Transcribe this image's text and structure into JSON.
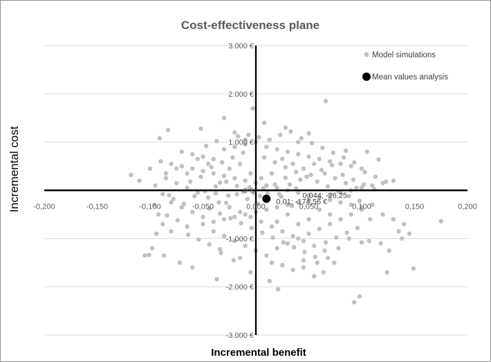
{
  "chart_data": {
    "type": "scatter",
    "title": "Cost-effectiveness plane",
    "xlabel": "Incremental benefit",
    "ylabel": "Incremental cost",
    "xlim": [
      -0.2,
      0.2
    ],
    "ylim": [
      -3000,
      3000
    ],
    "x_ticks": [
      "-0,200",
      "-0,150",
      "-0,100",
      "-0,050",
      "0,000",
      "0,050",
      "0,100",
      "0,150",
      "0,200"
    ],
    "y_ticks": [
      "3.000 €",
      "2.000 €",
      "1.000 €",
      "0 €",
      "-1.000 €",
      "-2.000 €",
      "-3.000 €"
    ],
    "grid": "horizontal",
    "legend_position": "top-right",
    "series": [
      {
        "name": "Model simulations",
        "color": "#c0c0c0",
        "points": [
          [
            -0.003,
            1700
          ],
          [
            0.066,
            1850
          ],
          [
            0.008,
            1400
          ],
          [
            -0.03,
            1500
          ],
          [
            -0.052,
            1280
          ],
          [
            0.028,
            1300
          ],
          [
            -0.083,
            1250
          ],
          [
            0.05,
            1180
          ],
          [
            -0.091,
            1080
          ],
          [
            -0.01,
            1050
          ],
          [
            0.04,
            1000
          ],
          [
            -0.02,
            1200
          ],
          [
            0.085,
            820
          ],
          [
            0.105,
            800
          ],
          [
            0.116,
            640
          ],
          [
            -0.118,
            320
          ],
          [
            0.175,
            -640
          ],
          [
            0.149,
            -1620
          ],
          [
            0.098,
            -2200
          ],
          [
            0.093,
            -2320
          ],
          [
            0.021,
            -2050
          ],
          [
            0.013,
            -1880
          ],
          [
            -0.037,
            -1840
          ],
          [
            0.055,
            -1780
          ],
          [
            0.064,
            -1700
          ],
          [
            0.124,
            -1700
          ],
          [
            0.126,
            -1250
          ],
          [
            -0.101,
            -1340
          ],
          [
            -0.087,
            -1350
          ],
          [
            -0.021,
            -1450
          ],
          [
            0.1,
            -1080
          ],
          [
            0.107,
            -1050
          ],
          [
            0.138,
            -1000
          ],
          [
            -0.072,
            -1500
          ],
          [
            -0.033,
            -1300
          ],
          [
            0.045,
            -1450
          ],
          [
            0.074,
            -1500
          ],
          [
            -0.105,
            -1350
          ],
          [
            -0.098,
            -1200
          ],
          [
            -0.06,
            -1600
          ],
          [
            -0.094,
            -900
          ],
          [
            -0.08,
            -850
          ],
          [
            -0.065,
            -750
          ],
          [
            -0.05,
            -700
          ],
          [
            -0.04,
            -650
          ],
          [
            -0.03,
            -600
          ],
          [
            -0.02,
            -550
          ],
          [
            -0.01,
            -500
          ],
          [
            0.0,
            -450
          ],
          [
            0.01,
            -400
          ],
          [
            0.02,
            -350
          ],
          [
            0.03,
            -300
          ],
          [
            0.04,
            -250
          ],
          [
            0.05,
            -200
          ],
          [
            0.06,
            -150
          ],
          [
            0.07,
            -100
          ],
          [
            0.08,
            -50
          ],
          [
            0.09,
            0
          ],
          [
            0.1,
            50
          ],
          [
            0.11,
            100
          ],
          [
            0.12,
            150
          ],
          [
            0.13,
            200
          ],
          [
            -0.09,
            600
          ],
          [
            -0.08,
            550
          ],
          [
            -0.07,
            500
          ],
          [
            -0.06,
            450
          ],
          [
            -0.05,
            400
          ],
          [
            -0.04,
            350
          ],
          [
            -0.03,
            300
          ],
          [
            -0.02,
            250
          ],
          [
            -0.01,
            200
          ],
          [
            0.0,
            150
          ],
          [
            0.01,
            100
          ],
          [
            0.02,
            50
          ],
          [
            0.03,
            0
          ],
          [
            0.04,
            -50
          ],
          [
            0.05,
            -100
          ],
          [
            0.06,
            -150
          ],
          [
            0.07,
            -200
          ],
          [
            0.08,
            -250
          ],
          [
            0.09,
            -300
          ],
          [
            0.1,
            -350
          ],
          [
            -0.085,
            250
          ],
          [
            -0.075,
            150
          ],
          [
            -0.065,
            50
          ],
          [
            -0.055,
            -50
          ],
          [
            -0.045,
            -150
          ],
          [
            -0.035,
            -250
          ],
          [
            -0.025,
            -350
          ],
          [
            -0.015,
            -450
          ],
          [
            -0.005,
            -550
          ],
          [
            0.005,
            -650
          ],
          [
            0.015,
            -750
          ],
          [
            0.025,
            -850
          ],
          [
            0.035,
            -950
          ],
          [
            0.045,
            -1050
          ],
          [
            0.055,
            -1150
          ],
          [
            0.065,
            -1250
          ],
          [
            -0.08,
            -250
          ],
          [
            -0.07,
            -350
          ],
          [
            -0.06,
            -450
          ],
          [
            -0.05,
            -550
          ],
          [
            -0.04,
            -850
          ],
          [
            -0.03,
            -950
          ],
          [
            -0.02,
            -1050
          ],
          [
            -0.01,
            -1150
          ],
          [
            0.0,
            -1250
          ],
          [
            0.01,
            -1350
          ],
          [
            0.02,
            -1200
          ],
          [
            0.03,
            -1100
          ],
          [
            0.04,
            -1000
          ],
          [
            0.05,
            -900
          ],
          [
            0.06,
            -800
          ],
          [
            0.07,
            -700
          ],
          [
            0.08,
            -600
          ],
          [
            0.09,
            -500
          ],
          [
            0.1,
            -400
          ],
          [
            0.11,
            -300
          ],
          [
            -0.07,
            800
          ],
          [
            -0.06,
            750
          ],
          [
            -0.05,
            700
          ],
          [
            -0.04,
            650
          ],
          [
            -0.03,
            850
          ],
          [
            -0.02,
            900
          ],
          [
            -0.01,
            950
          ],
          [
            0.0,
            1000
          ],
          [
            0.01,
            900
          ],
          [
            0.02,
            850
          ],
          [
            0.03,
            800
          ],
          [
            0.04,
            750
          ],
          [
            0.05,
            700
          ],
          [
            0.06,
            650
          ],
          [
            0.07,
            600
          ],
          [
            0.08,
            550
          ],
          [
            0.09,
            500
          ],
          [
            0.1,
            450
          ],
          [
            -0.095,
            100
          ],
          [
            -0.088,
            -80
          ],
          [
            -0.078,
            -180
          ],
          [
            -0.068,
            -280
          ],
          [
            -0.058,
            -120
          ],
          [
            -0.048,
            -20
          ],
          [
            -0.038,
            80
          ],
          [
            -0.028,
            180
          ],
          [
            -0.018,
            -80
          ],
          [
            -0.008,
            -180
          ],
          [
            0.002,
            -280
          ],
          [
            0.012,
            -180
          ],
          [
            0.022,
            -80
          ],
          [
            0.032,
            120
          ],
          [
            0.042,
            220
          ],
          [
            0.052,
            320
          ],
          [
            0.062,
            420
          ],
          [
            0.072,
            520
          ],
          [
            0.082,
            320
          ],
          [
            0.092,
            220
          ],
          [
            0.102,
            120
          ],
          [
            0.112,
            20
          ],
          [
            -0.062,
            180
          ],
          [
            -0.052,
            280
          ],
          [
            -0.042,
            480
          ],
          [
            -0.032,
            580
          ],
          [
            -0.022,
            680
          ],
          [
            -0.012,
            780
          ],
          [
            0.008,
            680
          ],
          [
            0.018,
            580
          ],
          [
            0.028,
            480
          ],
          [
            0.038,
            380
          ],
          [
            0.048,
            280
          ],
          [
            0.058,
            180
          ],
          [
            0.068,
            80
          ],
          [
            0.078,
            -20
          ],
          [
            0.088,
            -120
          ],
          [
            0.098,
            -220
          ],
          [
            -0.044,
            -380
          ],
          [
            -0.034,
            -480
          ],
          [
            -0.024,
            -580
          ],
          [
            -0.014,
            -680
          ],
          [
            -0.004,
            -780
          ],
          [
            0.006,
            -880
          ],
          [
            0.016,
            -980
          ],
          [
            0.026,
            -1080
          ],
          [
            0.036,
            -1180
          ],
          [
            0.046,
            -1280
          ],
          [
            0.056,
            -1380
          ],
          [
            0.066,
            -1080
          ],
          [
            0.076,
            -980
          ],
          [
            0.086,
            -880
          ],
          [
            0.096,
            -780
          ],
          [
            -0.074,
            -620
          ],
          [
            -0.084,
            -520
          ],
          [
            -0.064,
            -920
          ],
          [
            -0.054,
            -1020
          ],
          [
            -0.044,
            -1120
          ],
          [
            -0.034,
            -1220
          ],
          [
            0.015,
            -1500
          ],
          [
            0.025,
            -1550
          ],
          [
            0.035,
            -1650
          ],
          [
            0.045,
            -1600
          ],
          [
            -0.005,
            -1700
          ],
          [
            -0.015,
            -1400
          ],
          [
            0.005,
            250
          ],
          [
            0.015,
            350
          ],
          [
            0.025,
            650
          ],
          [
            0.035,
            550
          ],
          [
            0.045,
            450
          ],
          [
            0.055,
            550
          ],
          [
            0.065,
            350
          ],
          [
            0.075,
            250
          ],
          [
            0.085,
            150
          ],
          [
            0.095,
            50
          ],
          [
            -0.025,
            450
          ],
          [
            -0.015,
            550
          ],
          [
            -0.005,
            350
          ],
          [
            -0.045,
            550
          ],
          [
            -0.055,
            650
          ],
          [
            -0.065,
            350
          ],
          [
            -0.075,
            450
          ],
          [
            -0.085,
            350
          ],
          [
            -0.1,
            450
          ],
          [
            -0.11,
            200
          ],
          [
            0.12,
            -500
          ],
          [
            0.13,
            -600
          ],
          [
            0.14,
            -700
          ],
          [
            0.145,
            -900
          ],
          [
            0.118,
            -1100
          ],
          [
            0.135,
            -850
          ],
          [
            0.003,
            1100
          ],
          [
            0.013,
            1050
          ],
          [
            -0.007,
            1150
          ],
          [
            0.023,
            1150
          ],
          [
            -0.017,
            1120
          ],
          [
            0.033,
            1220
          ],
          [
            0.043,
            1080
          ],
          [
            -0.037,
            1020
          ],
          [
            -0.047,
            920
          ],
          [
            0.053,
            980
          ],
          [
            0.063,
            880
          ],
          [
            0.073,
            780
          ],
          [
            0.083,
            680
          ],
          [
            0.093,
            580
          ],
          [
            0.103,
            380
          ],
          [
            0.113,
            280
          ],
          [
            0.123,
            180
          ],
          [
            0.108,
            -600
          ],
          [
            0.088,
            -1000
          ],
          [
            0.078,
            -1200
          ],
          [
            0.068,
            -1400
          ],
          [
            0.058,
            -1500
          ],
          [
            -0.088,
            -700
          ],
          [
            -0.092,
            -500
          ],
          [
            -0.096,
            -300
          ],
          [
            -0.082,
            -100
          ],
          [
            0.03,
            -500
          ],
          [
            0.04,
            -700
          ],
          [
            0.05,
            -600
          ],
          [
            0.06,
            -400
          ],
          [
            0.07,
            -500
          ],
          [
            0.02,
            -650
          ],
          [
            -0.002,
            -50
          ],
          [
            0.004,
            -120
          ],
          [
            -0.006,
            60
          ],
          [
            0.007,
            40
          ],
          [
            -0.012,
            -30
          ],
          [
            0.011,
            -60
          ],
          [
            0.018,
            120
          ],
          [
            -0.018,
            90
          ],
          [
            0.024,
            -130
          ],
          [
            -0.026,
            -110
          ],
          [
            0.028,
            260
          ],
          [
            -0.028,
            -260
          ],
          [
            0.034,
            -320
          ],
          [
            -0.034,
            160
          ],
          [
            0.038,
            40
          ],
          [
            -0.038,
            -60
          ]
        ]
      },
      {
        "name": "Mean values analysis",
        "color": "#000000",
        "points": [
          [
            0.01,
            -174.56
          ]
        ]
      }
    ],
    "annotations": [
      "0,044; -26,25",
      "0,01; -174,56 €"
    ]
  }
}
